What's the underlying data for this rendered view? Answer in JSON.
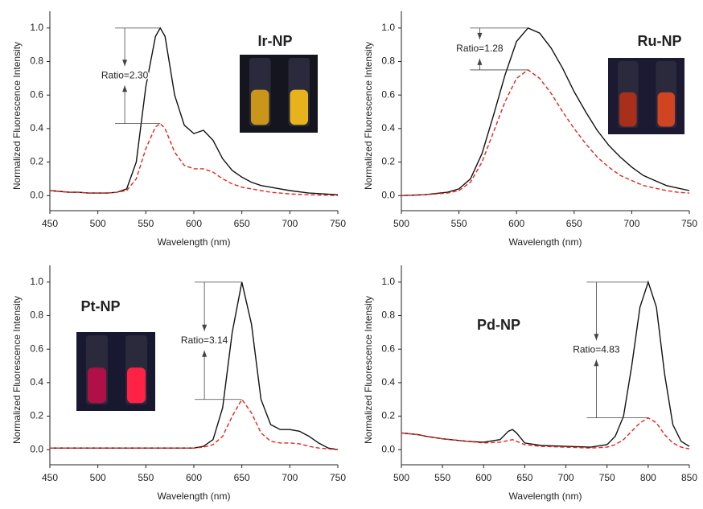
{
  "chart_data": [
    {
      "type": "line",
      "label": "Ir-NP",
      "annotation": "Ratio=2.30",
      "xlabel": "Wavelength (nm)",
      "ylabel": "Normalized Fluorescence Intensity",
      "x": [
        450,
        460,
        470,
        480,
        490,
        500,
        510,
        520,
        530,
        540,
        550,
        560,
        565,
        570,
        580,
        590,
        600,
        610,
        620,
        630,
        640,
        650,
        660,
        670,
        680,
        690,
        700,
        720,
        750
      ],
      "series": [
        {
          "color": "#111111",
          "linestyle": "solid",
          "values": [
            0.03,
            0.025,
            0.02,
            0.02,
            0.015,
            0.015,
            0.015,
            0.02,
            0.04,
            0.2,
            0.65,
            0.95,
            1.0,
            0.95,
            0.6,
            0.42,
            0.37,
            0.39,
            0.33,
            0.22,
            0.15,
            0.11,
            0.08,
            0.06,
            0.05,
            0.04,
            0.03,
            0.015,
            0.005
          ]
        },
        {
          "color": "#e8231f",
          "linestyle": "dashed",
          "values": [
            0.03,
            0.025,
            0.02,
            0.02,
            0.015,
            0.015,
            0.015,
            0.02,
            0.03,
            0.1,
            0.28,
            0.41,
            0.43,
            0.4,
            0.26,
            0.18,
            0.16,
            0.16,
            0.14,
            0.1,
            0.07,
            0.05,
            0.04,
            0.03,
            0.02,
            0.015,
            0.01,
            0.005,
            0.0
          ]
        }
      ],
      "xlim": [
        450,
        750
      ],
      "xticks": [
        450,
        500,
        550,
        600,
        650,
        700,
        750
      ],
      "ylim": [
        -0.09,
        1.1
      ],
      "yticks": [
        {
          "value": 0,
          "label": "0.0"
        },
        0.2,
        0.4,
        0.6,
        0.8,
        {
          "value": 1,
          "label": "1.0"
        }
      ]
    },
    {
      "type": "line",
      "label": "Ru-NP",
      "annotation": "Ratio=1.28",
      "xlabel": "Wavelength (nm)",
      "ylabel": "Normalized Fluorescence Intensity",
      "x": [
        500,
        520,
        540,
        550,
        560,
        570,
        580,
        590,
        600,
        610,
        620,
        630,
        640,
        650,
        660,
        670,
        680,
        690,
        700,
        710,
        720,
        730,
        740,
        750
      ],
      "series": [
        {
          "color": "#111111",
          "linestyle": "solid",
          "values": [
            0,
            0.005,
            0.02,
            0.04,
            0.1,
            0.25,
            0.48,
            0.72,
            0.92,
            1.0,
            0.97,
            0.88,
            0.76,
            0.62,
            0.5,
            0.39,
            0.3,
            0.23,
            0.17,
            0.12,
            0.09,
            0.06,
            0.045,
            0.03
          ]
        },
        {
          "color": "#e8231f",
          "linestyle": "dashed",
          "values": [
            0,
            0.005,
            0.015,
            0.03,
            0.08,
            0.2,
            0.38,
            0.56,
            0.7,
            0.75,
            0.7,
            0.61,
            0.5,
            0.4,
            0.31,
            0.23,
            0.17,
            0.12,
            0.09,
            0.06,
            0.045,
            0.03,
            0.02,
            0.015
          ]
        }
      ],
      "xlim": [
        500,
        750
      ],
      "xticks": [
        500,
        550,
        600,
        650,
        700,
        750
      ],
      "ylim": [
        -0.09,
        1.1
      ],
      "yticks": [
        {
          "value": 0,
          "label": "0.0"
        },
        0.2,
        0.4,
        0.6,
        0.8,
        {
          "value": 1,
          "label": "1.0"
        }
      ]
    },
    {
      "type": "line",
      "label": "Pt-NP",
      "annotation": "Ratio=3.14",
      "xlabel": "Wavelength (nm)",
      "ylabel": "Normalized Fluorescence Intensity",
      "x": [
        450,
        500,
        550,
        600,
        610,
        620,
        630,
        640,
        650,
        660,
        670,
        680,
        690,
        700,
        710,
        720,
        730,
        740,
        750
      ],
      "series": [
        {
          "color": "#111111",
          "linestyle": "solid",
          "values": [
            0.01,
            0.01,
            0.01,
            0.01,
            0.02,
            0.06,
            0.25,
            0.7,
            1.0,
            0.75,
            0.3,
            0.15,
            0.12,
            0.12,
            0.11,
            0.08,
            0.04,
            0.01,
            0.0
          ]
        },
        {
          "color": "#e8231f",
          "linestyle": "dashed",
          "values": [
            0.01,
            0.01,
            0.01,
            0.01,
            0.015,
            0.03,
            0.08,
            0.2,
            0.3,
            0.22,
            0.1,
            0.05,
            0.04,
            0.04,
            0.035,
            0.02,
            0.01,
            0.005,
            0.0
          ]
        }
      ],
      "xlim": [
        450,
        750
      ],
      "xticks": [
        450,
        500,
        550,
        600,
        650,
        700,
        750
      ],
      "ylim": [
        -0.09,
        1.1
      ],
      "yticks": [
        {
          "value": 0,
          "label": "0.0"
        },
        0.2,
        0.4,
        0.6,
        0.8,
        {
          "value": 1,
          "label": "1.0"
        }
      ]
    },
    {
      "type": "line",
      "label": "Pd-NP",
      "annotation": "Ratio=4.83",
      "xlabel": "Wavelength (nm)",
      "ylabel": "Normalized Fluorescence Intensity",
      "x": [
        500,
        510,
        520,
        530,
        550,
        580,
        600,
        620,
        630,
        635,
        640,
        650,
        670,
        700,
        730,
        750,
        760,
        770,
        780,
        790,
        800,
        810,
        820,
        830,
        840,
        850
      ],
      "series": [
        {
          "color": "#111111",
          "linestyle": "solid",
          "values": [
            0.1,
            0.095,
            0.09,
            0.08,
            0.065,
            0.05,
            0.045,
            0.06,
            0.11,
            0.12,
            0.1,
            0.04,
            0.025,
            0.02,
            0.015,
            0.03,
            0.08,
            0.2,
            0.5,
            0.85,
            1.0,
            0.85,
            0.45,
            0.15,
            0.05,
            0.02
          ]
        },
        {
          "color": "#e8231f",
          "linestyle": "dashed",
          "values": [
            0.1,
            0.095,
            0.09,
            0.08,
            0.065,
            0.05,
            0.04,
            0.045,
            0.055,
            0.06,
            0.05,
            0.03,
            0.02,
            0.015,
            0.01,
            0.015,
            0.03,
            0.06,
            0.11,
            0.16,
            0.19,
            0.16,
            0.09,
            0.04,
            0.015,
            0.005
          ]
        }
      ],
      "xlim": [
        500,
        850
      ],
      "xticks": [
        500,
        550,
        600,
        650,
        700,
        750,
        800,
        850
      ],
      "ylim": [
        -0.09,
        1.1
      ],
      "yticks": [
        {
          "value": 0,
          "label": "0.0"
        },
        0.2,
        0.4,
        0.6,
        0.8,
        {
          "value": 1,
          "label": "1.0"
        }
      ]
    }
  ]
}
